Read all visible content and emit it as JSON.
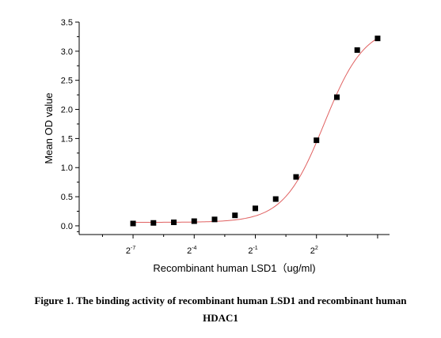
{
  "chart_data": {
    "type": "scatter",
    "xlabel": "Recombinant human LSD1（ug/ml)",
    "ylabel": "Mean OD value",
    "x_scale": "log2",
    "x_tick_labels": [
      {
        "base": "2",
        "exp": "-7",
        "value": 0.0078125
      },
      {
        "base": "2",
        "exp": "-4",
        "value": 0.0625
      },
      {
        "base": "2",
        "exp": "-1",
        "value": 0.5
      },
      {
        "base": "2",
        "exp": "2",
        "value": 4
      }
    ],
    "y_ticks": [
      "0.0",
      "0.5",
      "1.0",
      "1.5",
      "2.0",
      "2.5",
      "3.0",
      "3.5"
    ],
    "ylim": [
      -0.15,
      3.5
    ],
    "xlim": [
      0.00125,
      48
    ],
    "series": [
      {
        "points": [
          {
            "x": 0.0078125,
            "y": 0.04
          },
          {
            "x": 0.015625,
            "y": 0.05
          },
          {
            "x": 0.03125,
            "y": 0.06
          },
          {
            "x": 0.0625,
            "y": 0.08
          },
          {
            "x": 0.125,
            "y": 0.11
          },
          {
            "x": 0.25,
            "y": 0.18
          },
          {
            "x": 0.5,
            "y": 0.3
          },
          {
            "x": 1,
            "y": 0.46
          },
          {
            "x": 2,
            "y": 0.84
          },
          {
            "x": 4,
            "y": 1.47
          },
          {
            "x": 8,
            "y": 2.21
          },
          {
            "x": 16,
            "y": 3.02
          },
          {
            "x": 32,
            "y": 3.22
          }
        ],
        "color": "#000000",
        "fit_color": "#e06060"
      }
    ],
    "grid": false
  },
  "caption": {
    "line1": "Figure 1. The binding activity of recombinant human LSD1 and recombinant human",
    "line2": "HDAC1"
  }
}
